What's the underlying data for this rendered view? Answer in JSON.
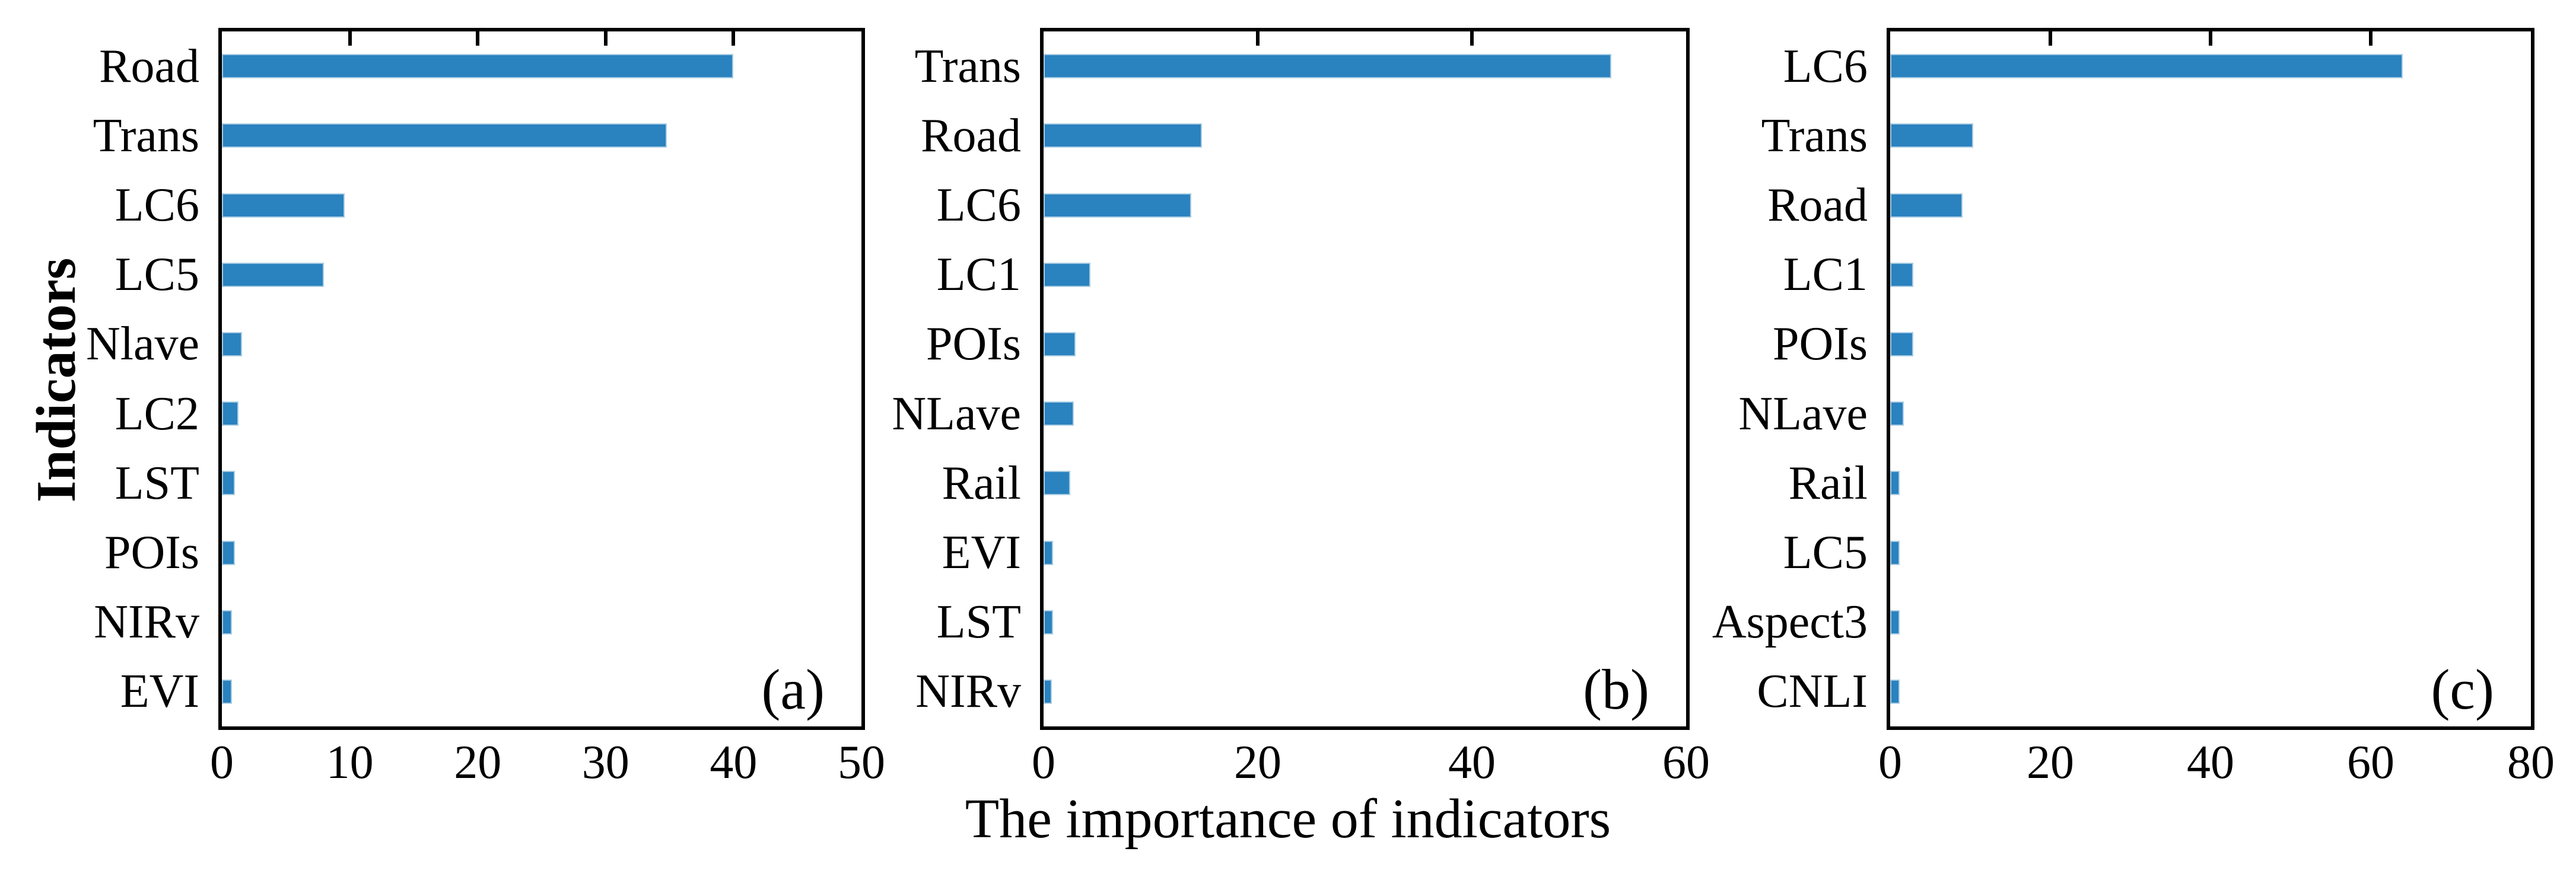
{
  "figure": {
    "x_axis_label": "The importance of indicators",
    "y_axis_label": "Indicators"
  },
  "colors": {
    "bar_fill": "#2A82BF",
    "bar_edge": "#A9CCE2",
    "axis": "#000000",
    "background": "#FFFFFF"
  },
  "chart_data": [
    {
      "type": "bar",
      "orientation": "horizontal",
      "panel_label": "(a)",
      "xlim": [
        0,
        50
      ],
      "xticks": [
        0,
        10,
        20,
        30,
        40,
        50
      ],
      "grid": false,
      "categories": [
        "Road",
        "Trans",
        "LC6",
        "LC5",
        "Nlave",
        "LC2",
        "LST",
        "POIs",
        "NIRv",
        "EVI"
      ],
      "values": [
        40,
        34.8,
        9.6,
        8.0,
        1.6,
        1.3,
        1.0,
        1.0,
        0.8,
        0.8
      ]
    },
    {
      "type": "bar",
      "orientation": "horizontal",
      "panel_label": "(b)",
      "xlim": [
        0,
        60
      ],
      "xticks": [
        0,
        20,
        40,
        60
      ],
      "grid": false,
      "categories": [
        "Trans",
        "Road",
        "LC6",
        "LC1",
        "POIs",
        "NLave",
        "Rail",
        "EVI",
        "LST",
        "NIRv"
      ],
      "values": [
        53,
        14.8,
        13.8,
        4.4,
        3.0,
        2.8,
        2.5,
        0.9,
        0.9,
        0.8
      ]
    },
    {
      "type": "bar",
      "orientation": "horizontal",
      "panel_label": "(c)",
      "xlim": [
        0,
        80
      ],
      "xticks": [
        0,
        20,
        40,
        60,
        80
      ],
      "grid": false,
      "categories": [
        "LC6",
        "Trans",
        "Road",
        "LC1",
        "POIs",
        "NLave",
        "Rail",
        "LC5",
        "Aspect3",
        "CNLI"
      ],
      "values": [
        64,
        10.4,
        9.0,
        2.9,
        2.9,
        1.7,
        1.2,
        1.2,
        1.2,
        1.2
      ]
    }
  ]
}
